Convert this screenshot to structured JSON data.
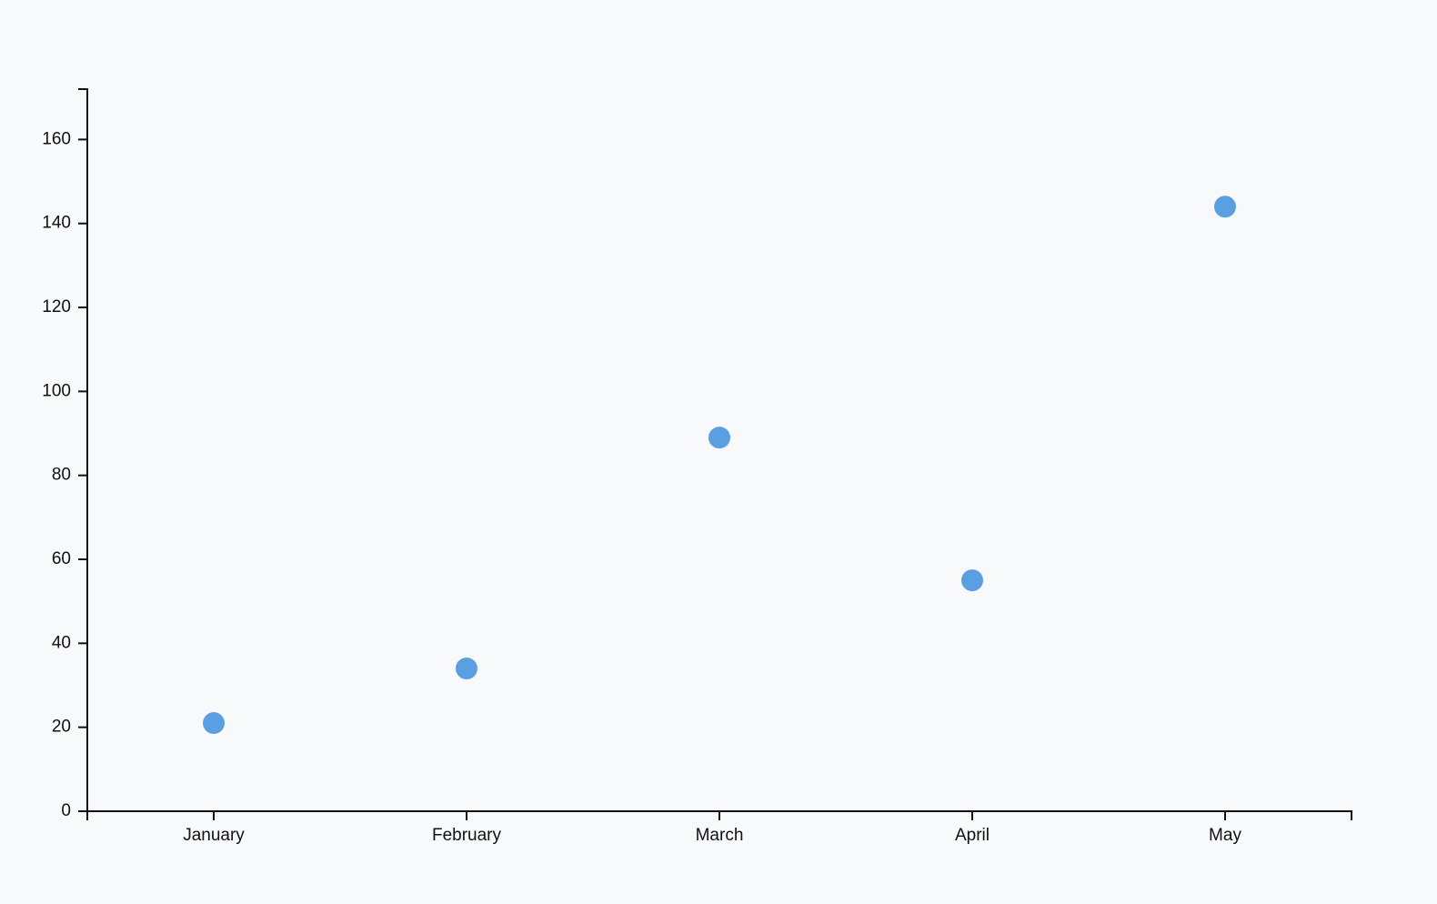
{
  "chart_data": {
    "type": "scatter",
    "title": "",
    "xlabel": "",
    "ylabel": "",
    "categories": [
      "January",
      "February",
      "March",
      "April",
      "May"
    ],
    "series": [
      {
        "values": [
          21,
          34,
          89,
          55,
          144
        ]
      }
    ],
    "yticks": [
      0,
      20,
      40,
      60,
      80,
      100,
      120,
      140,
      160
    ],
    "ylim": [
      0,
      172
    ],
    "grid": false,
    "legend": "none",
    "colors": {
      "point": "#5b9fe3",
      "axis": "#111111",
      "background": "#f7f9fb"
    }
  }
}
